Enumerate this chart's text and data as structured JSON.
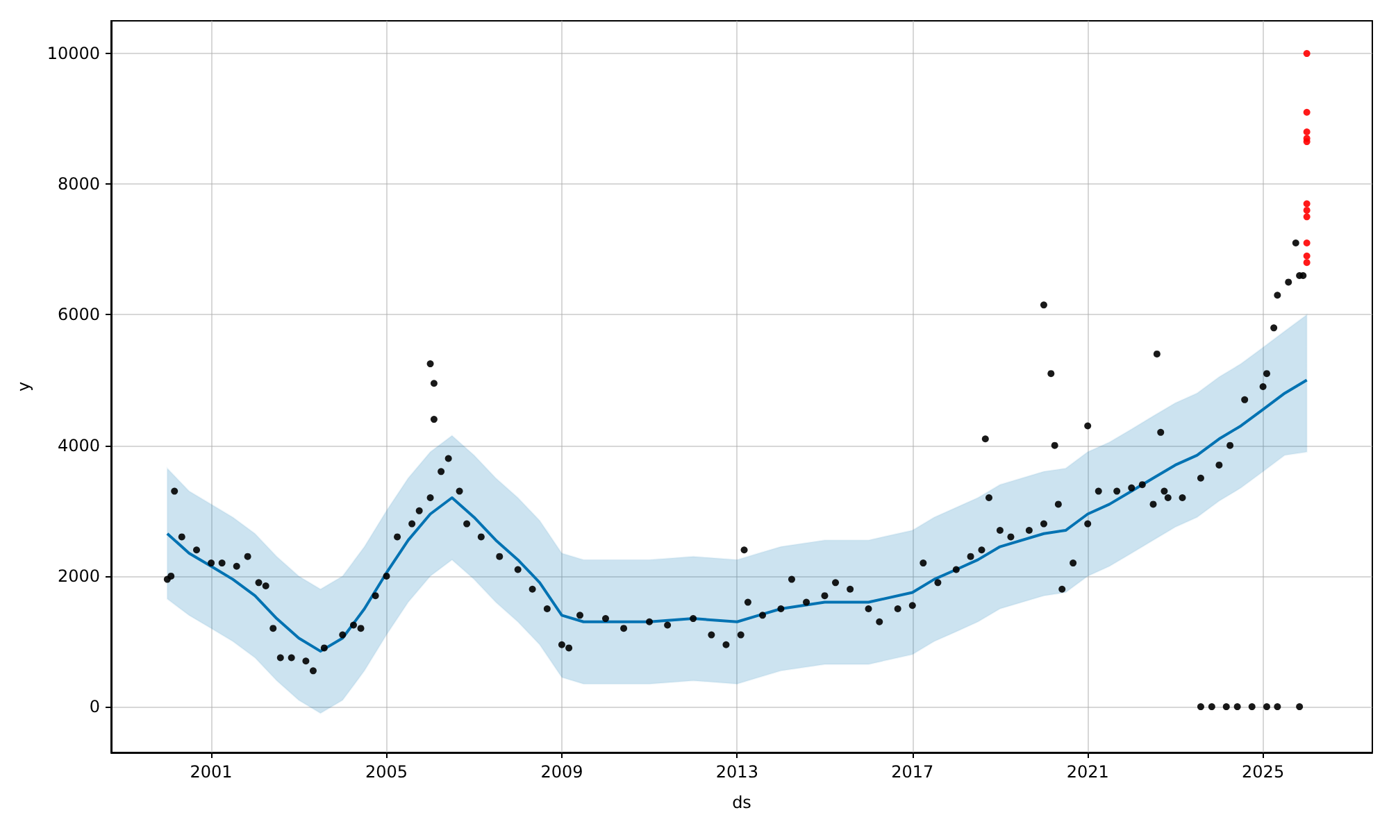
{
  "chart_data": {
    "type": "scatter",
    "xlabel": "ds",
    "ylabel": "y",
    "xlim": [
      "1998-09-20",
      "2027-07"
    ],
    "ylim": [
      -700,
      10500
    ],
    "xticks": [
      "2001",
      "2005",
      "2009",
      "2013",
      "2017",
      "2021",
      "2025"
    ],
    "yticks": [
      0,
      2000,
      4000,
      6000,
      8000,
      10000
    ],
    "grid": true,
    "marker": "circle",
    "series": [
      {
        "color": "#000000",
        "x": [
          "2000-01",
          "2000-02",
          "2000-03",
          "2000-05",
          "2000-09",
          "2001-01",
          "2001-04",
          "2001-08",
          "2001-11",
          "2002-02",
          "2002-04",
          "2002-06",
          "2002-08",
          "2002-11",
          "2003-03",
          "2003-05",
          "2003-08",
          "2004-01",
          "2004-04",
          "2004-06",
          "2004-10",
          "2005-01",
          "2005-04",
          "2005-08",
          "2005-10",
          "2006-01",
          "2006-01",
          "2006-02",
          "2006-02",
          "2006-04",
          "2006-06",
          "2006-09",
          "2006-11",
          "2007-03",
          "2007-08",
          "2008-01",
          "2008-05",
          "2008-09",
          "2009-01",
          "2009-03",
          "2009-06",
          "2010-01",
          "2010-06",
          "2011-01",
          "2011-06",
          "2012-01",
          "2012-06",
          "2012-10",
          "2013-02",
          "2013-03",
          "2013-04",
          "2013-08",
          "2014-01",
          "2014-04",
          "2014-08",
          "2015-01",
          "2015-04",
          "2015-08",
          "2016-01",
          "2016-04",
          "2016-09",
          "2017-01",
          "2017-04",
          "2017-08",
          "2018-01",
          "2018-05",
          "2018-08",
          "2018-09",
          "2018-10",
          "2019-01",
          "2019-04",
          "2019-09",
          "2020-01",
          "2020-01",
          "2020-03",
          "2020-04",
          "2020-05",
          "2020-06",
          "2020-09",
          "2021-01",
          "2021-01",
          "2021-04",
          "2021-09",
          "2022-01",
          "2022-04",
          "2022-07",
          "2022-08",
          "2022-09",
          "2022-10",
          "2022-11",
          "2023-03",
          "2023-08",
          "2024-01",
          "2024-04",
          "2024-08",
          "2025-01",
          "2025-02",
          "2025-04",
          "2025-05",
          "2025-08",
          "2025-10",
          "2025-11",
          "2025-12",
          "2023-08",
          "2023-11",
          "2024-03",
          "2024-06",
          "2024-10",
          "2025-02",
          "2025-05",
          "2025-11"
        ],
        "values": [
          1950,
          2000,
          3300,
          2600,
          2400,
          2200,
          2200,
          2150,
          2300,
          1900,
          1850,
          1200,
          750,
          750,
          700,
          550,
          900,
          1100,
          1250,
          1200,
          1700,
          2000,
          2600,
          2800,
          3000,
          3200,
          5250,
          4950,
          4400,
          3600,
          3800,
          3300,
          2800,
          2600,
          2300,
          2100,
          1800,
          1500,
          950,
          900,
          1400,
          1350,
          1200,
          1300,
          1250,
          1350,
          1100,
          950,
          1100,
          2400,
          1600,
          1400,
          1500,
          1950,
          1600,
          1700,
          1900,
          1800,
          1500,
          1300,
          1500,
          1550,
          2200,
          1900,
          2100,
          2300,
          2400,
          4100,
          3200,
          2700,
          2600,
          2700,
          2800,
          6150,
          5100,
          4000,
          3100,
          1800,
          2200,
          2800,
          4300,
          3300,
          3300,
          3350,
          3400,
          3100,
          5400,
          4200,
          3300,
          3200,
          3200,
          3500,
          3700,
          4000,
          4700,
          4900,
          5100,
          5800,
          6300,
          6500,
          7100,
          6600,
          6600,
          0,
          0,
          0,
          0,
          0,
          0,
          0,
          0
        ]
      },
      {
        "type": "line",
        "color": "#0072b2",
        "marker": "none",
        "line_style": "solid",
        "x": [
          "2000-01",
          "2000-07",
          "2001-01",
          "2001-07",
          "2002-01",
          "2002-07",
          "2003-01",
          "2003-07",
          "2004-01",
          "2004-07",
          "2005-01",
          "2005-07",
          "2006-01",
          "2006-07",
          "2007-01",
          "2007-07",
          "2008-01",
          "2008-07",
          "2009-01",
          "2009-07",
          "2010-01",
          "2011-01",
          "2012-01",
          "2013-01",
          "2013-07",
          "2014-01",
          "2015-01",
          "2016-01",
          "2017-01",
          "2017-07",
          "2018-01",
          "2018-07",
          "2019-01",
          "2020-01",
          "2020-07",
          "2021-01",
          "2021-07",
          "2022-01",
          "2022-07",
          "2023-01",
          "2023-07",
          "2024-01",
          "2024-07",
          "2025-01",
          "2025-07",
          "2026-01"
        ],
        "values": [
          2650,
          2350,
          2150,
          1950,
          1700,
          1350,
          1050,
          850,
          1050,
          1500,
          2050,
          2550,
          2950,
          3200,
          2900,
          2550,
          2250,
          1900,
          1400,
          1300,
          1300,
          1300,
          1350,
          1300,
          1400,
          1500,
          1600,
          1600,
          1750,
          1950,
          2100,
          2250,
          2450,
          2650,
          2700,
          2950,
          3100,
          3300,
          3500,
          3700,
          3850,
          4100,
          4300,
          4550,
          4800,
          5000
        ],
        "lower": [
          1650,
          1400,
          1200,
          1000,
          750,
          400,
          100,
          -100,
          100,
          550,
          1100,
          1600,
          2000,
          2250,
          1950,
          1600,
          1300,
          950,
          450,
          350,
          350,
          350,
          400,
          350,
          450,
          550,
          650,
          650,
          800,
          1000,
          1150,
          1300,
          1500,
          1700,
          1750,
          2000,
          2150,
          2350,
          2550,
          2750,
          2900,
          3150,
          3350,
          3600,
          3850,
          3900
        ],
        "upper": [
          3650,
          3300,
          3100,
          2900,
          2650,
          2300,
          2000,
          1800,
          2000,
          2450,
          3000,
          3500,
          3900,
          4150,
          3850,
          3500,
          3200,
          2850,
          2350,
          2250,
          2250,
          2250,
          2300,
          2250,
          2350,
          2450,
          2550,
          2550,
          2700,
          2900,
          3050,
          3200,
          3400,
          3600,
          3650,
          3900,
          4050,
          4250,
          4450,
          4650,
          4800,
          5050,
          5250,
          5500,
          5750,
          6000
        ]
      },
      {
        "color": "#ff0000",
        "x": [
          "2026-01",
          "2026-01",
          "2026-01",
          "2026-01",
          "2026-01",
          "2026-01",
          "2026-01",
          "2026-01",
          "2026-01",
          "2026-01",
          "2026-01"
        ],
        "values": [
          10000,
          9100,
          8800,
          8700,
          8650,
          7700,
          7600,
          7500,
          7100,
          6900,
          6800
        ]
      }
    ]
  }
}
